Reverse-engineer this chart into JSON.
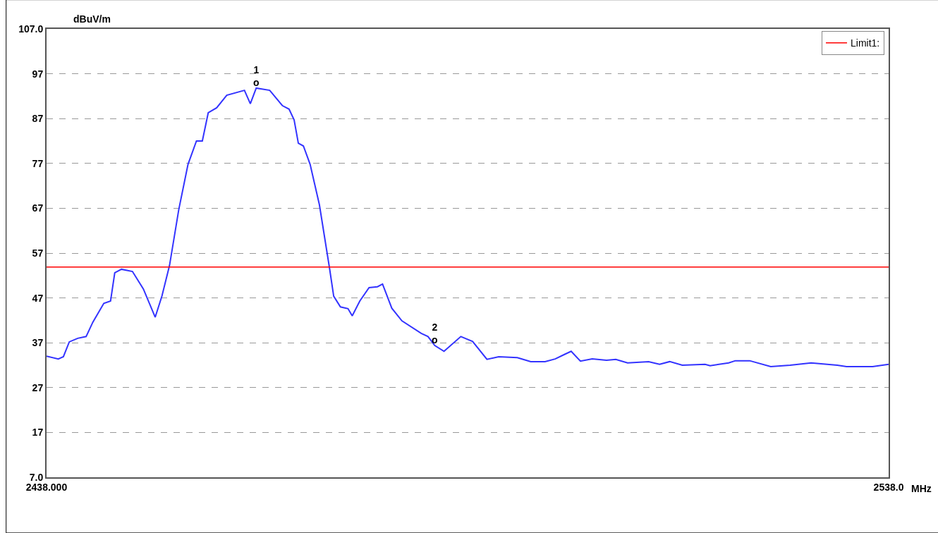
{
  "chart_data": {
    "type": "line",
    "xlabel": "MHz",
    "ylabel": "dBuV/m",
    "xlim": [
      2438,
      2538
    ],
    "xticks": [
      {
        "value": 2438,
        "label": "2438.000"
      },
      {
        "value": 2538,
        "label": "2538.0"
      }
    ],
    "ylim": [
      7,
      107
    ],
    "yticks": [
      {
        "value": 7,
        "label": "7.0"
      },
      17,
      27,
      37,
      47,
      57,
      67,
      77,
      87,
      97,
      {
        "value": 107,
        "label": "107.0"
      }
    ],
    "grid": "y",
    "legend": "top right",
    "marker": "none",
    "line_style": "solid",
    "series": [
      {
        "color": "#3333ff",
        "x": [
          2438.0,
          2439.4,
          2440.0,
          2440.7,
          2441.7,
          2442.7,
          2443.5,
          2444.8,
          2445.6,
          2446.1,
          2446.9,
          2448.2,
          2449.5,
          2450.9,
          2451.7,
          2452.6,
          2453.7,
          2454.8,
          2455.8,
          2456.5,
          2457.2,
          2458.2,
          2459.4,
          2461.5,
          2462.2,
          2462.9,
          2464.5,
          2466.0,
          2466.8,
          2467.4,
          2467.9,
          2468.5,
          2469.3,
          2470.4,
          2471.6,
          2472.1,
          2472.9,
          2473.8,
          2474.3,
          2475.2,
          2476.3,
          2477.3,
          2477.9,
          2479.0,
          2480.2,
          2482.5,
          2483.3,
          2484.1,
          2485.2,
          2487.2,
          2488.6,
          2490.3,
          2491.7,
          2493.9,
          2495.5,
          2497.2,
          2498.4,
          2499.5,
          2500.3,
          2501.4,
          2502.8,
          2504.5,
          2505.6,
          2507.0,
          2509.5,
          2510.8,
          2512.0,
          2513.5,
          2516.2,
          2516.8,
          2519.0,
          2519.8,
          2521.5,
          2524.0,
          2526.3,
          2528.8,
          2531.9,
          2533.0,
          2536.1,
          2538.0
        ],
        "values": [
          34.0,
          33.4,
          33.9,
          37.2,
          38.0,
          38.4,
          41.6,
          45.8,
          46.3,
          52.6,
          53.4,
          52.9,
          49.0,
          42.7,
          47.4,
          54.2,
          66.7,
          76.8,
          82.0,
          82.0,
          88.3,
          89.4,
          92.2,
          93.3,
          90.3,
          93.8,
          93.3,
          89.9,
          89.1,
          86.7,
          81.5,
          80.9,
          76.8,
          67.8,
          53.7,
          47.4,
          45.0,
          44.6,
          43.0,
          46.3,
          49.3,
          49.5,
          50.1,
          44.7,
          41.9,
          39.1,
          38.4,
          36.4,
          35.1,
          38.4,
          37.3,
          33.3,
          33.9,
          33.7,
          32.8,
          32.8,
          33.4,
          34.4,
          35.1,
          32.9,
          33.4,
          33.1,
          33.3,
          32.5,
          32.8,
          32.2,
          32.8,
          32.0,
          32.2,
          31.9,
          32.5,
          33.0,
          33.0,
          31.7,
          32.0,
          32.5,
          32.0,
          31.7,
          31.7,
          32.2
        ]
      }
    ],
    "ref_lines": [
      {
        "axis": "y",
        "value": 53.9,
        "label": "Limit1:",
        "color": "#ff0000",
        "line_style": "solid"
      }
    ],
    "annotations": [
      {
        "text": "1\no",
        "x": 2462.9,
        "y": 93.8
      },
      {
        "text": "2\no",
        "x": 2484.1,
        "y": 36.4
      }
    ]
  }
}
